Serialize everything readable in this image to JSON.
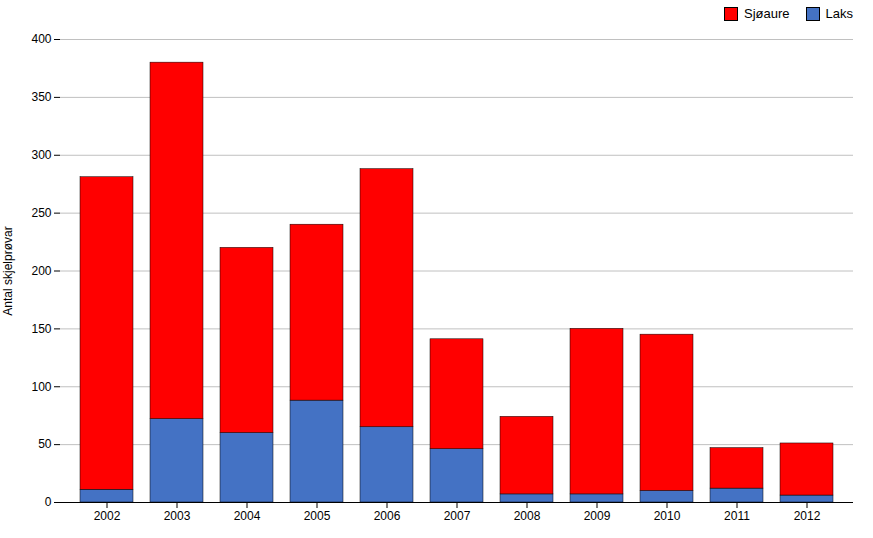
{
  "chart_data": {
    "type": "bar",
    "stacked": true,
    "categories": [
      "2002",
      "2003",
      "2004",
      "2005",
      "2006",
      "2007",
      "2008",
      "2009",
      "2010",
      "2011",
      "2012"
    ],
    "series": [
      {
        "name": "Laks",
        "color": "#4472C4",
        "values": [
          11,
          72,
          60,
          88,
          65,
          46,
          7,
          7,
          10,
          12,
          6
        ]
      },
      {
        "name": "Sjøaure",
        "color": "#FF0000",
        "values": [
          270,
          308,
          160,
          152,
          223,
          95,
          67,
          143,
          135,
          35,
          45
        ]
      }
    ],
    "ylabel": "Antal skjelprøvar",
    "ylim": [
      0,
      400
    ],
    "yticks": [
      0,
      50,
      100,
      150,
      200,
      250,
      300,
      350,
      400
    ],
    "grid": true,
    "legend": "upper right"
  }
}
